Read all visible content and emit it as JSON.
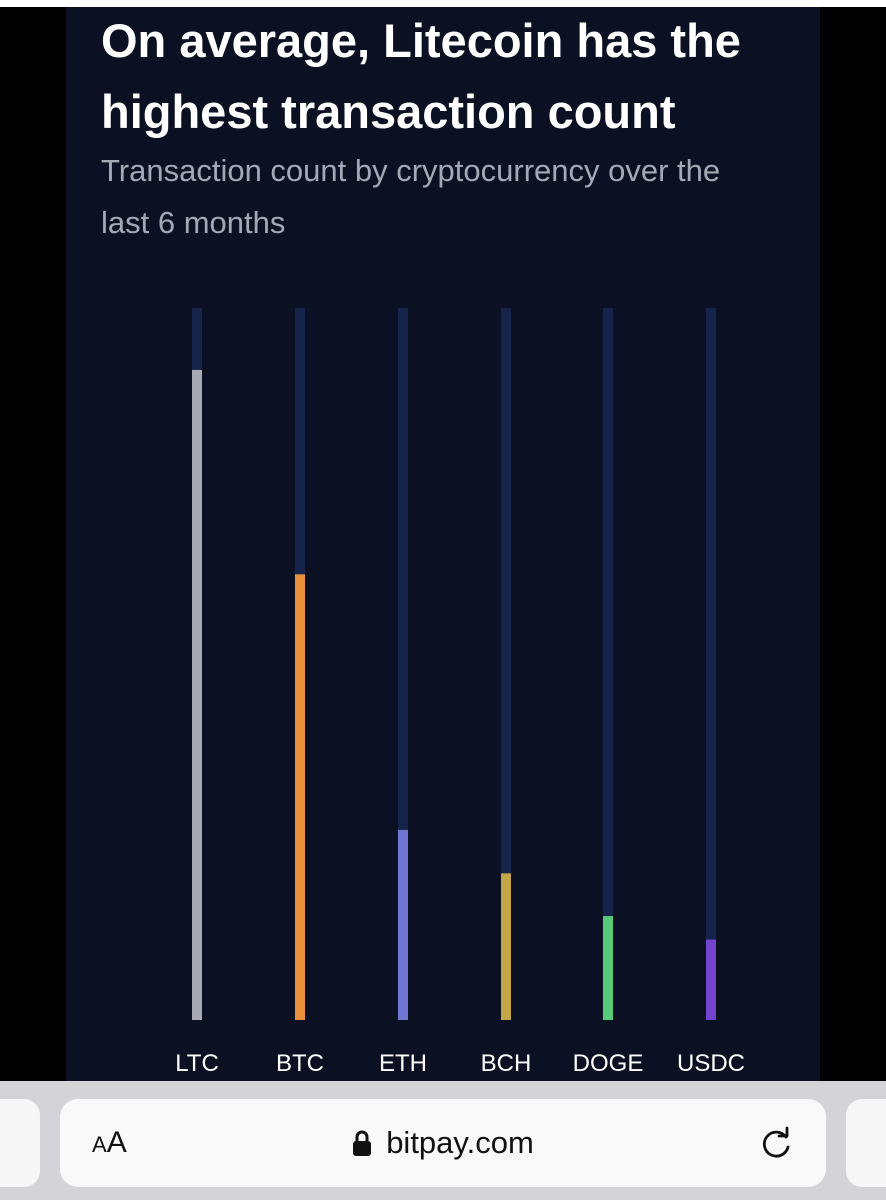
{
  "chart": {
    "title": "On average, Litecoin has the highest transaction count",
    "subtitle": "Transaction count by cryptocurrency over the last 6 months"
  },
  "chart_data": {
    "type": "bar",
    "title": "On average, Litecoin has the highest transaction count",
    "subtitle": "Transaction count by cryptocurrency over the last 6 months",
    "categories": [
      "LTC",
      "BTC",
      "ETH",
      "BCH",
      "DOGE",
      "USDC"
    ],
    "values": [
      0.913,
      0.626,
      0.267,
      0.206,
      0.146,
      0.113
    ],
    "value_scale": "relative share of the track height (no axis printed)",
    "ylim": [
      0,
      1
    ],
    "colors": [
      "#a9a9b3",
      "#e9913a",
      "#6e78d3",
      "#c2a648",
      "#57c97a",
      "#7444cf"
    ],
    "track_color": "#16234a",
    "grid": false,
    "legend": "none"
  },
  "browser": {
    "text_size_small": "A",
    "text_size_big": "A",
    "url": "bitpay.com",
    "lock_icon": "lock-icon",
    "reload_icon": "reload-icon"
  }
}
